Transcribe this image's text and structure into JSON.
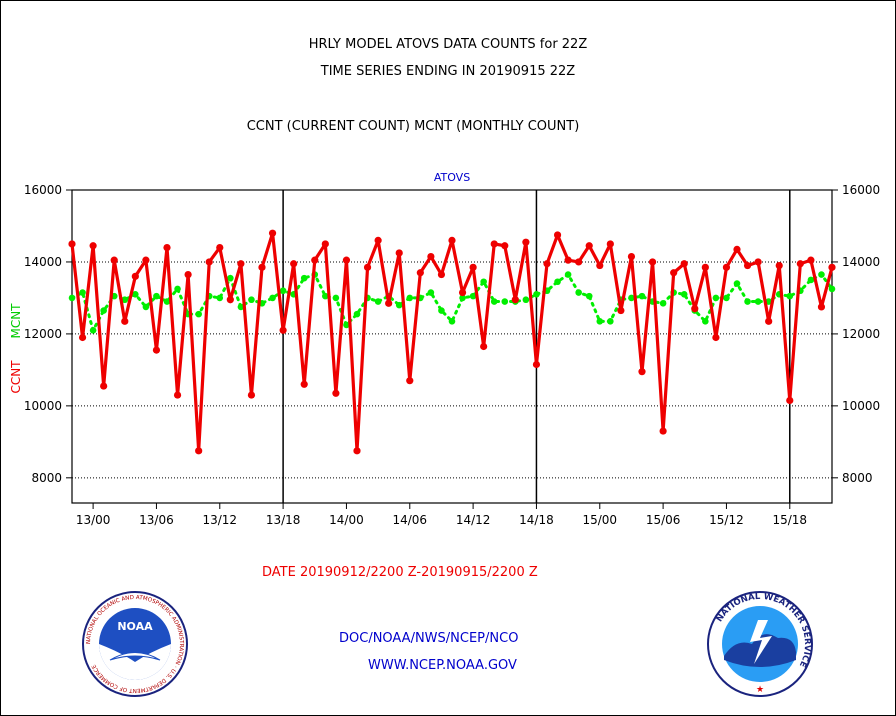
{
  "titles": {
    "line1": "HRLY MODEL ATOVS DATA COUNTS for 22Z",
    "line2": "TIME SERIES ENDING IN 20190915 22Z",
    "line3": "CCNT (CURRENT COUNT) MCNT (MONTHLY COUNT)",
    "panel": "ATOVS",
    "dates": "DATE 20190912/2200 Z-20190915/2200 Z"
  },
  "footer": {
    "doc": "DOC/NOAA/NWS/NCEP/NCO",
    "web": "WWW.NCEP.NOAA.GOV"
  },
  "logos": {
    "noaa": {
      "center": "NOAA",
      "ring": "NATIONAL OCEANIC AND ATMOSPHERIC ADMINISTRATION · U.S. DEPARTMENT OF COMMERCE"
    },
    "nws": {
      "ring": "NATIONAL WEATHER SERVICE"
    }
  },
  "colors": {
    "ccnt": "#ee0000",
    "mcnt": "#00ee00",
    "text_blue": "#0000cc"
  },
  "chart_data": {
    "type": "line",
    "title": "ATOVS",
    "ylabel_left": "CCNT",
    "ylabel_left2": "MCNT",
    "ylim": [
      7300,
      16000
    ],
    "yticks": [
      8000,
      10000,
      12000,
      14000,
      16000
    ],
    "ytick_labels": [
      "8000",
      "10000",
      "12000",
      "14000",
      "16000"
    ],
    "x_start_hour": 22,
    "x_end_hour": 94,
    "xtick_labels": [
      {
        "hour": 24,
        "label": "13/00"
      },
      {
        "hour": 30,
        "label": "13/06"
      },
      {
        "hour": 36,
        "label": "13/12"
      },
      {
        "hour": 42,
        "label": "13/18"
      },
      {
        "hour": 48,
        "label": "14/00"
      },
      {
        "hour": 54,
        "label": "14/06"
      },
      {
        "hour": 60,
        "label": "14/12"
      },
      {
        "hour": 66,
        "label": "14/18"
      },
      {
        "hour": 72,
        "label": "15/00"
      },
      {
        "hour": 78,
        "label": "15/06"
      },
      {
        "hour": 84,
        "label": "15/12"
      },
      {
        "hour": 90,
        "label": "15/18"
      }
    ],
    "day_separators": [
      42,
      66,
      90
    ],
    "grid": true,
    "series": [
      {
        "name": "CCNT",
        "values": [
          14500,
          11900,
          14450,
          10550,
          14050,
          12350,
          13600,
          14050,
          11550,
          14400,
          10300,
          13650,
          8750,
          14000,
          14400,
          12950,
          13950,
          10300,
          13850,
          14800,
          12100,
          13950,
          10600,
          14050,
          14500,
          10350,
          14050,
          8750,
          13850,
          14600,
          12850,
          14250,
          10700,
          13700,
          14150,
          13650,
          14600,
          13150,
          13850,
          11650,
          14500,
          14450,
          12950,
          14550,
          11150,
          13950,
          14750,
          14050,
          14000,
          14450,
          13900,
          14500,
          12650,
          14150,
          10950,
          14000,
          9300,
          13700,
          13950,
          12700,
          13850,
          11900,
          13850,
          14350,
          13900,
          14000,
          12350,
          13900,
          10150,
          13950,
          14050,
          12750,
          13850
        ]
      },
      {
        "name": "MCNT",
        "values": [
          13000,
          13150,
          12100,
          12650,
          13050,
          12950,
          13100,
          12750,
          13050,
          12900,
          13250,
          12550,
          12550,
          13050,
          13000,
          13550,
          12750,
          12950,
          12850,
          13000,
          13200,
          13100,
          13550,
          13650,
          13050,
          13000,
          12250,
          12550,
          13000,
          12900,
          13050,
          12800,
          13000,
          13000,
          13150,
          12650,
          12350,
          13000,
          13050,
          13450,
          12900,
          12900,
          12900,
          12950,
          13100,
          13200,
          13450,
          13650,
          13150,
          13050,
          12350,
          12350,
          12950,
          13000,
          13050,
          12900,
          12850,
          13150,
          13100,
          12650,
          12350,
          13000,
          13000,
          13400,
          12900,
          12900,
          12900,
          13100,
          13050,
          13200,
          13500,
          13650,
          13250
        ]
      }
    ]
  }
}
